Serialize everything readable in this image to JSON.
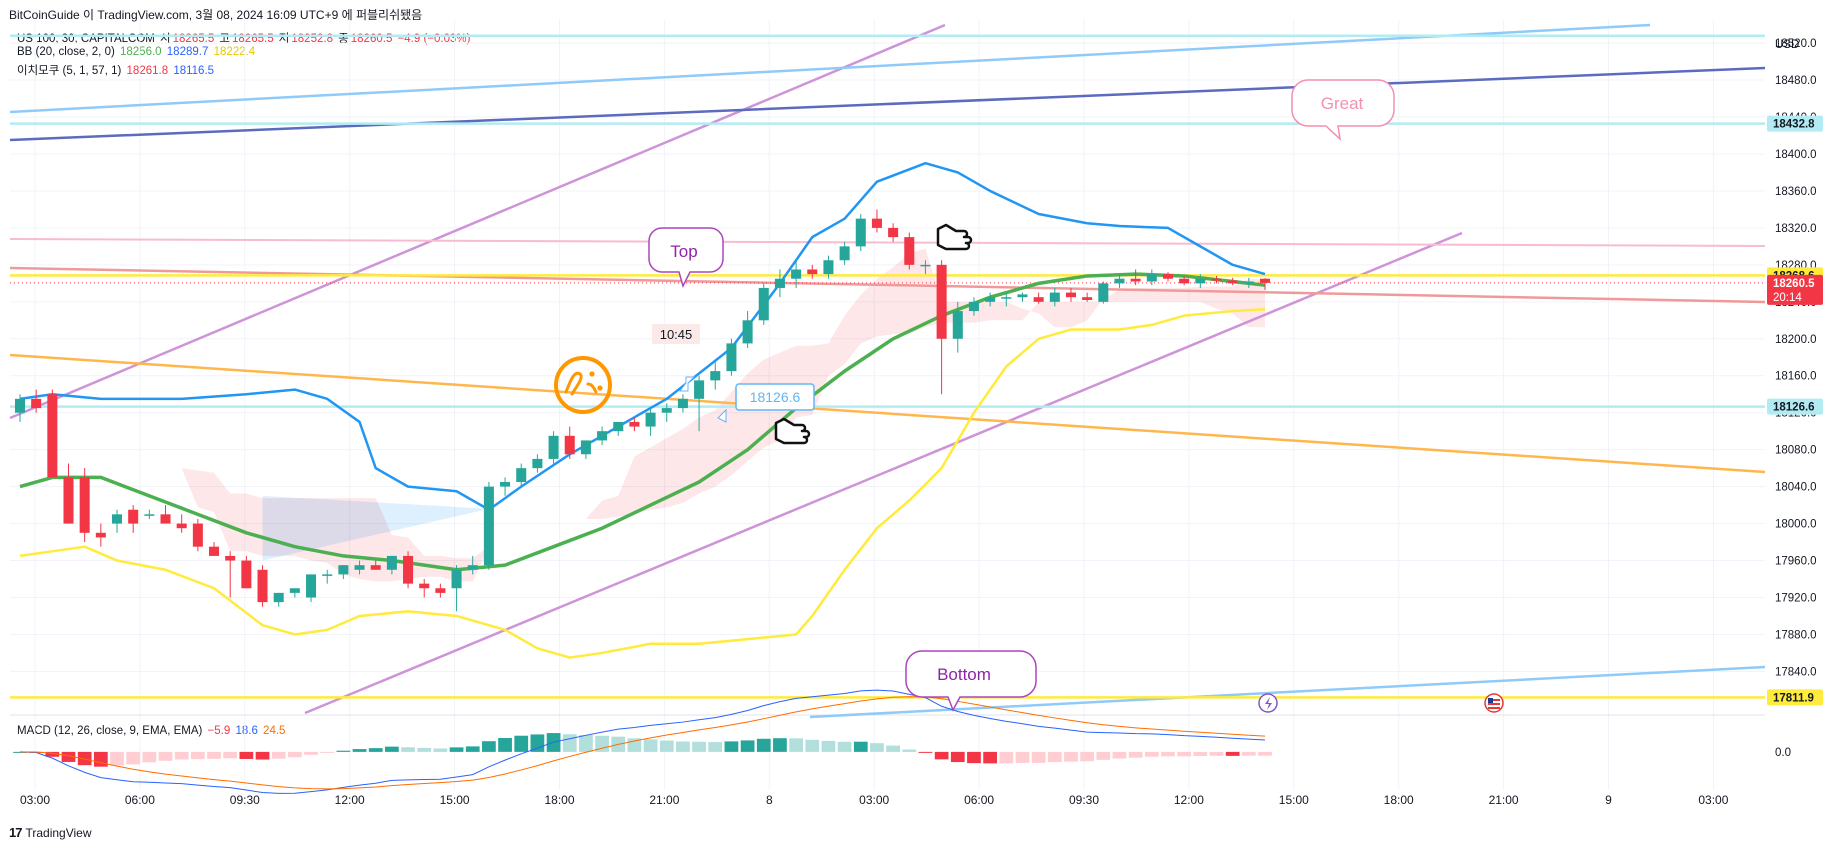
{
  "header": {
    "title": "BitCoinGuide 이 TradingView.com, 3월 08, 2024 16:09 UTC+9 에 퍼블리쉬됐음"
  },
  "legend": {
    "symbol": "US 100, 30, CAPITALCOM",
    "ohlc": [
      {
        "label": "시",
        "value": "18265.5"
      },
      {
        "label": "고",
        "value": "18265.5"
      },
      {
        "label": "저",
        "value": "18252.8"
      },
      {
        "label": "종",
        "value": "18260.5"
      }
    ],
    "change": "−4.9 (−0.03%)",
    "bb": {
      "label": "BB (20, close, 2, 0)",
      "values": [
        "18256.0",
        "18289.7",
        "18222.4"
      ]
    },
    "ichimoku": {
      "label": "이치모쿠 (5, 1, 57, 1)",
      "values": [
        "18261.8",
        "18116.5"
      ]
    },
    "macd": {
      "label": "MACD (12, 26, close, 9, EMA, EMA)",
      "values": [
        "−5.9",
        "18.6",
        "24.5"
      ]
    }
  },
  "annotations": {
    "top": "Top",
    "bottom": "Bottom",
    "great": "Great",
    "time_label": "10:45",
    "price_note": "18126.6"
  },
  "colors": {
    "up": "#26a69a",
    "down": "#f23645",
    "bb_basis": "#4caf50",
    "bb_upper": "#2196f3",
    "bb_lower": "#ffeb3b",
    "callout": "#9c27b0",
    "great": "#f48fb1"
  },
  "chart_data": {
    "type": "candlestick",
    "currency": "USD",
    "ylim": [
      17795,
      18545
    ],
    "y_ticks": [
      17840,
      17880,
      17920,
      17960,
      18000,
      18040,
      18080,
      18120,
      18160,
      18200,
      18240,
      18280,
      18320,
      18360,
      18400,
      18440,
      18480,
      18520
    ],
    "x_ticks": [
      "03:00",
      "06:00",
      "09:30",
      "12:00",
      "15:00",
      "18:00",
      "21:00",
      "8",
      "03:00",
      "06:00",
      "09:30",
      "12:00",
      "15:00",
      "18:00",
      "21:00",
      "9",
      "03:00"
    ],
    "price_labels": [
      {
        "value": 18432.8,
        "text": "18432.8",
        "style": "cyan"
      },
      {
        "value": 18268.6,
        "text": "18268.6",
        "style": "yellow"
      },
      {
        "value": 18260.5,
        "text": "18260.5",
        "sub": "20:14",
        "style": "red"
      },
      {
        "value": 18126.6,
        "text": "18126.6",
        "style": "cyan"
      },
      {
        "value": 17811.9,
        "text": "17811.9",
        "style": "yellow"
      }
    ],
    "candles": [
      [
        18120,
        18140,
        18110,
        18135
      ],
      [
        18135,
        18145,
        18120,
        18125
      ],
      [
        18140,
        18145,
        18055,
        18050
      ],
      [
        18050,
        18065,
        18000,
        18000
      ],
      [
        18050,
        18060,
        17980,
        17990
      ],
      [
        17990,
        18000,
        17975,
        17985
      ],
      [
        18000,
        18015,
        17990,
        18010
      ],
      [
        18015,
        18020,
        17990,
        18000
      ],
      [
        18010,
        18015,
        18005,
        18010
      ],
      [
        18010,
        18020,
        18005,
        18000
      ],
      [
        18000,
        18010,
        17990,
        17995
      ],
      [
        18000,
        18005,
        17970,
        17975
      ],
      [
        17975,
        17980,
        17965,
        17965
      ],
      [
        17965,
        17970,
        17920,
        17960
      ],
      [
        17960,
        17965,
        17930,
        17930
      ],
      [
        17950,
        17955,
        17910,
        17915
      ],
      [
        17915,
        17925,
        17910,
        17925
      ],
      [
        17925,
        17930,
        17920,
        17930
      ],
      [
        17920,
        17945,
        17915,
        17945
      ],
      [
        17945,
        17950,
        17935,
        17945
      ],
      [
        17945,
        17955,
        17940,
        17955
      ],
      [
        17950,
        17960,
        17945,
        17955
      ],
      [
        17955,
        17960,
        17950,
        17950
      ],
      [
        17950,
        17965,
        17945,
        17965
      ],
      [
        17965,
        17970,
        17930,
        17935
      ],
      [
        17935,
        17940,
        17920,
        17930
      ],
      [
        17930,
        17935,
        17920,
        17925
      ],
      [
        17930,
        17955,
        17905,
        17950
      ],
      [
        17950,
        17965,
        17945,
        17955
      ],
      [
        17955,
        18045,
        17950,
        18040
      ],
      [
        18040,
        18050,
        18030,
        18045
      ],
      [
        18045,
        18065,
        18040,
        18060
      ],
      [
        18060,
        18075,
        18055,
        18070
      ],
      [
        18070,
        18100,
        18065,
        18095
      ],
      [
        18095,
        18105,
        18070,
        18075
      ],
      [
        18075,
        18090,
        18070,
        18090
      ],
      [
        18090,
        18105,
        18085,
        18100
      ],
      [
        18100,
        18110,
        18095,
        18110
      ],
      [
        18110,
        18115,
        18100,
        18105
      ],
      [
        18105,
        18125,
        18095,
        18120
      ],
      [
        18120,
        18130,
        18110,
        18125
      ],
      [
        18125,
        18140,
        18120,
        18135
      ],
      [
        18135,
        18160,
        18100,
        18155
      ],
      [
        18155,
        18175,
        18145,
        18165
      ],
      [
        18165,
        18200,
        18160,
        18195
      ],
      [
        18195,
        18230,
        18190,
        18220
      ],
      [
        18220,
        18260,
        18215,
        18255
      ],
      [
        18255,
        18275,
        18245,
        18265
      ],
      [
        18265,
        18285,
        18255,
        18275
      ],
      [
        18275,
        18280,
        18265,
        18270
      ],
      [
        18270,
        18290,
        18265,
        18285
      ],
      [
        18285,
        18305,
        18280,
        18300
      ],
      [
        18300,
        18335,
        18295,
        18330
      ],
      [
        18330,
        18340,
        18315,
        18320
      ],
      [
        18320,
        18325,
        18305,
        18310
      ],
      [
        18310,
        18315,
        18275,
        18280
      ],
      [
        18280,
        18285,
        18270,
        18280
      ],
      [
        18280,
        18285,
        18140,
        18200
      ],
      [
        18200,
        18240,
        18185,
        18230
      ],
      [
        18230,
        18245,
        18225,
        18240
      ],
      [
        18240,
        18250,
        18235,
        18245
      ],
      [
        18245,
        18250,
        18235,
        18245
      ],
      [
        18245,
        18250,
        18240,
        18248
      ],
      [
        18245,
        18250,
        18238,
        18240
      ],
      [
        18240,
        18255,
        18235,
        18250
      ],
      [
        18250,
        18255,
        18240,
        18245
      ],
      [
        18245,
        18250,
        18240,
        18242
      ],
      [
        18240,
        18262,
        18238,
        18260
      ],
      [
        18260,
        18270,
        18255,
        18265
      ],
      [
        18265,
        18275,
        18258,
        18262
      ],
      [
        18262,
        18275,
        18258,
        18270
      ],
      [
        18270,
        18272,
        18262,
        18265
      ],
      [
        18265,
        18268,
        18258,
        18260
      ],
      [
        18260,
        18270,
        18255,
        18265
      ],
      [
        18265,
        18268,
        18260,
        18263
      ],
      [
        18263,
        18266,
        18258,
        18260
      ],
      [
        18260,
        18266,
        18255,
        18262
      ],
      [
        18265,
        18265.5,
        18252.8,
        18260.5
      ]
    ],
    "bb_upper": [
      [
        0,
        18135
      ],
      [
        2,
        18140
      ],
      [
        5,
        18135
      ],
      [
        10,
        18135
      ],
      [
        14,
        18140
      ],
      [
        17,
        18145
      ],
      [
        19,
        18135
      ],
      [
        21,
        18110
      ],
      [
        22,
        18060
      ],
      [
        24,
        18040
      ],
      [
        27,
        18035
      ],
      [
        29,
        18015
      ],
      [
        31,
        18040
      ],
      [
        34,
        18075
      ],
      [
        37,
        18105
      ],
      [
        40,
        18135
      ],
      [
        44,
        18190
      ],
      [
        47,
        18260
      ],
      [
        49,
        18310
      ],
      [
        51,
        18330
      ],
      [
        53,
        18370
      ],
      [
        56,
        18390
      ],
      [
        58,
        18380
      ],
      [
        60,
        18360
      ],
      [
        63,
        18335
      ],
      [
        66,
        18325
      ],
      [
        68,
        18322
      ],
      [
        71,
        18320
      ],
      [
        73,
        18300
      ],
      [
        75,
        18280
      ],
      [
        77,
        18270
      ]
    ],
    "bb_basis": [
      [
        0,
        18040
      ],
      [
        2,
        18050
      ],
      [
        5,
        18050
      ],
      [
        8,
        18030
      ],
      [
        11,
        18010
      ],
      [
        14,
        17990
      ],
      [
        17,
        17975
      ],
      [
        20,
        17965
      ],
      [
        23,
        17960
      ],
      [
        27,
        17950
      ],
      [
        30,
        17955
      ],
      [
        33,
        17975
      ],
      [
        36,
        17995
      ],
      [
        39,
        18020
      ],
      [
        42,
        18045
      ],
      [
        45,
        18080
      ],
      [
        48,
        18125
      ],
      [
        51,
        18165
      ],
      [
        54,
        18200
      ],
      [
        57,
        18225
      ],
      [
        60,
        18245
      ],
      [
        63,
        18260
      ],
      [
        66,
        18268
      ],
      [
        69,
        18270
      ],
      [
        72,
        18268
      ],
      [
        75,
        18262
      ],
      [
        77,
        18258
      ]
    ],
    "bb_lower": [
      [
        0,
        17965
      ],
      [
        2,
        17970
      ],
      [
        4,
        17975
      ],
      [
        6,
        17960
      ],
      [
        9,
        17950
      ],
      [
        12,
        17930
      ],
      [
        15,
        17890
      ],
      [
        17,
        17880
      ],
      [
        19,
        17885
      ],
      [
        21,
        17900
      ],
      [
        24,
        17905
      ],
      [
        27,
        17900
      ],
      [
        30,
        17885
      ],
      [
        32,
        17865
      ],
      [
        34,
        17855
      ],
      [
        36,
        17860
      ],
      [
        39,
        17870
      ],
      [
        42,
        17870
      ],
      [
        45,
        17875
      ],
      [
        48,
        17880
      ],
      [
        49,
        17900
      ],
      [
        51,
        17950
      ],
      [
        53,
        17995
      ],
      [
        55,
        18025
      ],
      [
        57,
        18060
      ],
      [
        59,
        18120
      ],
      [
        61,
        18170
      ],
      [
        63,
        18200
      ],
      [
        65,
        18210
      ],
      [
        68,
        18210
      ],
      [
        70,
        18215
      ],
      [
        72,
        18225
      ],
      [
        75,
        18230
      ],
      [
        77,
        18232
      ]
    ],
    "macd": {
      "ylim": [
        -45,
        40
      ],
      "zero_label": "0.0"
    }
  }
}
